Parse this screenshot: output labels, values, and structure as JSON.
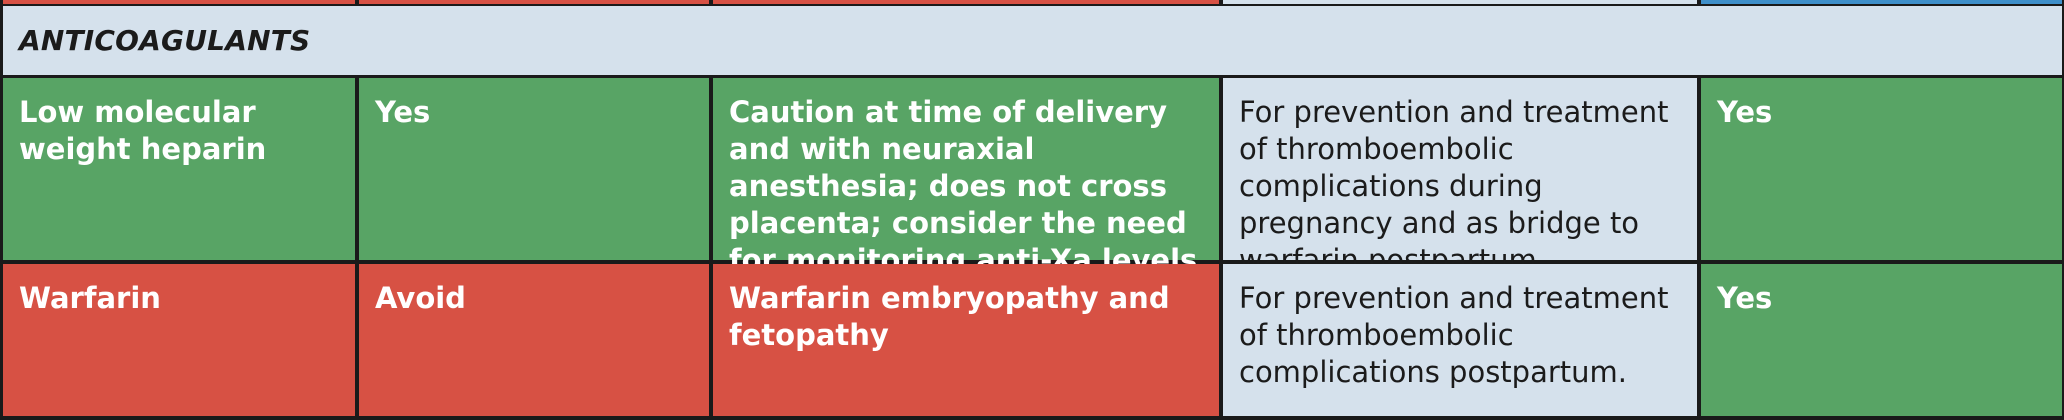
{
  "colors": {
    "recommended": "#58a465",
    "avoid": "#d75144",
    "neutral": "#d5e1ec",
    "border": "#1a1a1a",
    "text_light": "#ffffff",
    "text_dark": "#1b1b1b"
  },
  "section": {
    "title": "ANTICOAGULANTS"
  },
  "rows": [
    {
      "drug": "Low molecular weight heparin",
      "use_in_pregnancy": "Yes",
      "considerations": "Caution at time of delivery and with neuraxial anesthesia; does not cross placenta; consider the need for monitoring anti-Xa levels",
      "indication": "For prevention and treatment of thromboembolic complications during pregnancy and as bridge to warfarin postpartum.",
      "breastfeeding": "Yes"
    },
    {
      "drug": "Warfarin",
      "use_in_pregnancy": "Avoid",
      "considerations": "Warfarin embryopathy and fetopathy",
      "indication": "For prevention and treatment of thromboembolic complications postpartum.",
      "breastfeeding": "Yes"
    }
  ]
}
